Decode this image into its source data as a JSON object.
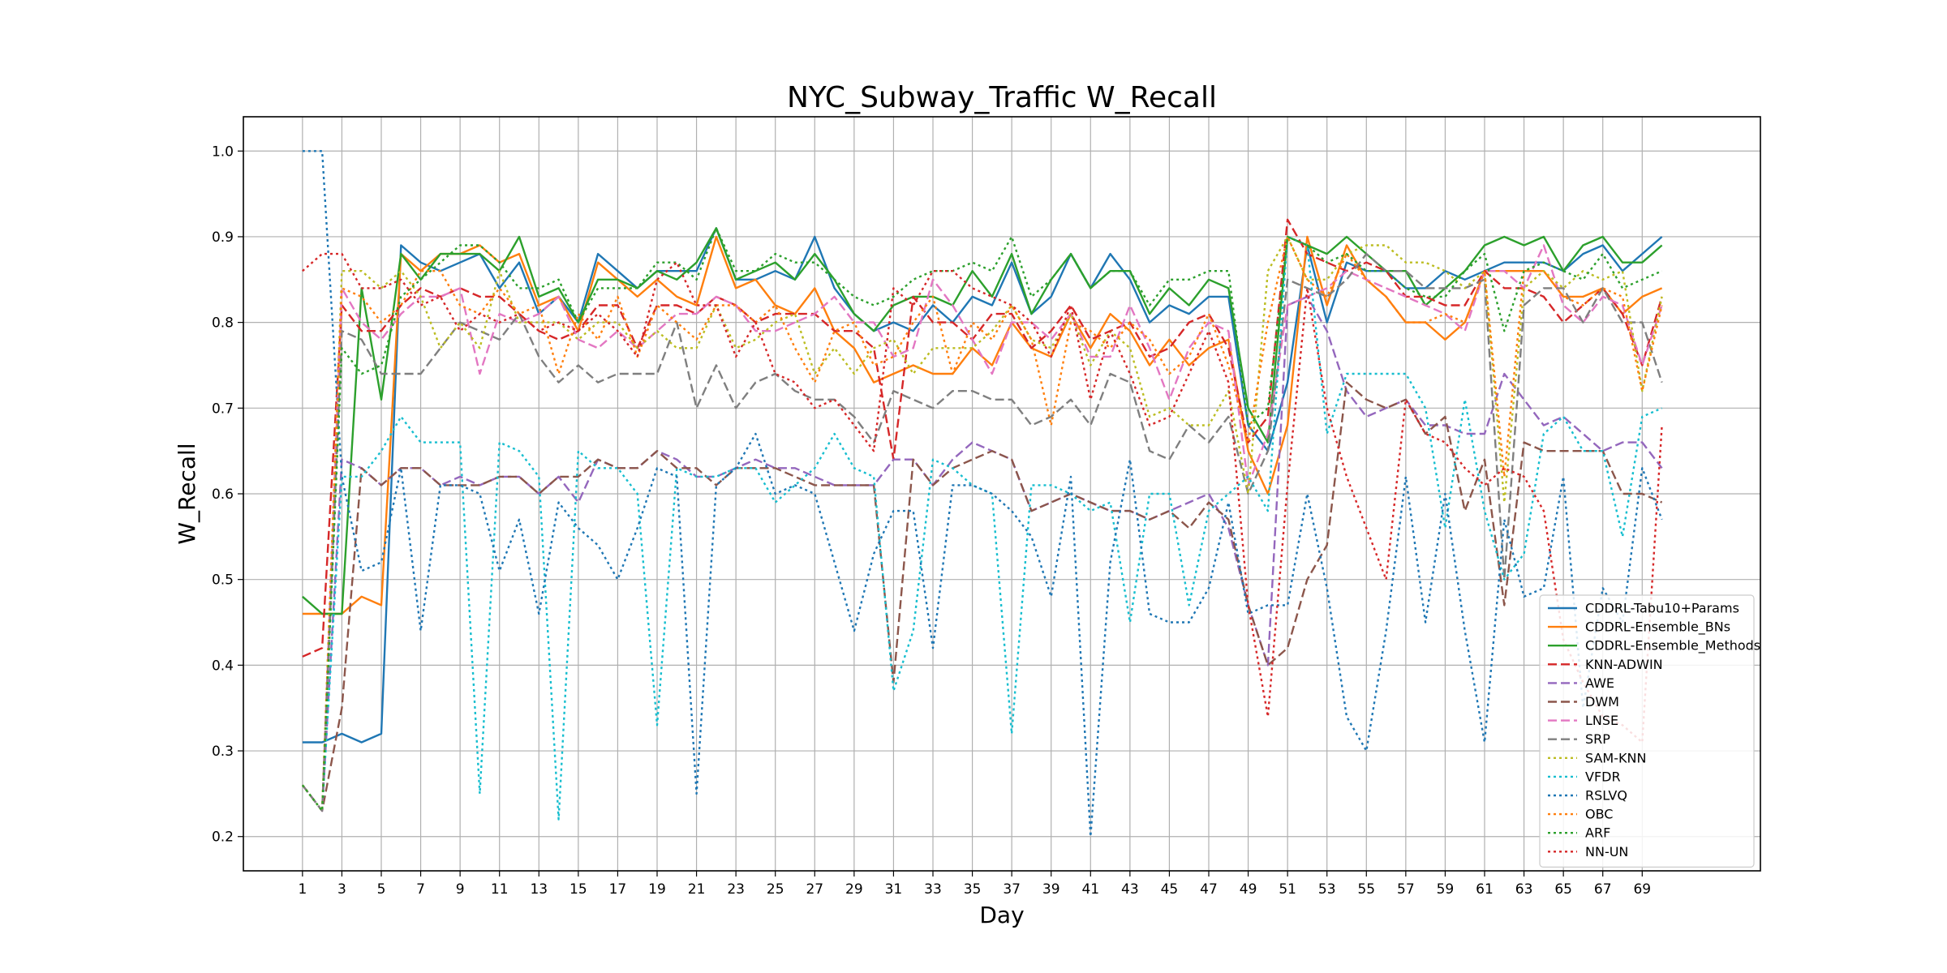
{
  "chart_data": {
    "type": "line",
    "title": "NYC_Subway_Traffic W_Recall",
    "xlabel": "Day",
    "ylabel": "W_Recall",
    "xlim": [
      -2,
      75
    ],
    "ylim": [
      0.16,
      1.04
    ],
    "xticks": [
      1,
      3,
      5,
      7,
      9,
      11,
      13,
      15,
      17,
      19,
      21,
      23,
      25,
      27,
      29,
      31,
      33,
      35,
      37,
      39,
      41,
      43,
      45,
      47,
      49,
      51,
      53,
      55,
      57,
      59,
      61,
      63,
      65,
      67,
      69
    ],
    "yticks": [
      0.2,
      0.3,
      0.4,
      0.5,
      0.6,
      0.7,
      0.8,
      0.9,
      1.0
    ],
    "grid": true,
    "legend_position": "lower-right",
    "x": [
      1,
      2,
      3,
      4,
      5,
      6,
      7,
      8,
      9,
      10,
      11,
      12,
      13,
      14,
      15,
      16,
      17,
      18,
      19,
      20,
      21,
      22,
      23,
      24,
      25,
      26,
      27,
      28,
      29,
      30,
      31,
      32,
      33,
      34,
      35,
      36,
      37,
      38,
      39,
      40,
      41,
      42,
      43,
      44,
      45,
      46,
      47,
      48,
      49,
      50,
      51,
      52,
      53,
      54,
      55,
      56,
      57,
      58,
      59,
      60,
      61,
      62,
      63,
      64,
      65,
      66,
      67,
      68,
      69,
      70
    ],
    "series": [
      {
        "name": "CDDRL-Tabu10+Params",
        "color": "#1f77b4",
        "dash": "solid",
        "values": [
          0.31,
          0.31,
          0.32,
          0.31,
          0.32,
          0.89,
          0.87,
          0.86,
          0.87,
          0.88,
          0.84,
          0.87,
          0.81,
          0.83,
          0.8,
          0.88,
          0.86,
          0.84,
          0.86,
          0.86,
          0.86,
          0.91,
          0.85,
          0.85,
          0.86,
          0.85,
          0.9,
          0.84,
          0.81,
          0.79,
          0.8,
          0.79,
          0.82,
          0.8,
          0.83,
          0.82,
          0.87,
          0.81,
          0.83,
          0.88,
          0.84,
          0.88,
          0.85,
          0.8,
          0.82,
          0.81,
          0.83,
          0.83,
          0.68,
          0.65,
          0.73,
          0.89,
          0.8,
          0.87,
          0.86,
          0.86,
          0.84,
          0.84,
          0.86,
          0.85,
          0.86,
          0.87,
          0.87,
          0.87,
          0.86,
          0.88,
          0.89,
          0.86,
          0.88,
          0.9
        ]
      },
      {
        "name": "CDDRL-Ensemble_BNs",
        "color": "#ff7f0e",
        "dash": "solid",
        "values": [
          0.46,
          0.46,
          0.46,
          0.48,
          0.47,
          0.88,
          0.86,
          0.88,
          0.88,
          0.89,
          0.87,
          0.88,
          0.82,
          0.83,
          0.79,
          0.87,
          0.85,
          0.83,
          0.85,
          0.83,
          0.82,
          0.9,
          0.84,
          0.85,
          0.82,
          0.81,
          0.84,
          0.79,
          0.77,
          0.73,
          0.74,
          0.75,
          0.74,
          0.74,
          0.77,
          0.75,
          0.8,
          0.77,
          0.76,
          0.81,
          0.77,
          0.81,
          0.79,
          0.75,
          0.78,
          0.75,
          0.77,
          0.78,
          0.65,
          0.6,
          0.68,
          0.9,
          0.82,
          0.89,
          0.85,
          0.83,
          0.8,
          0.8,
          0.78,
          0.8,
          0.86,
          0.86,
          0.86,
          0.86,
          0.83,
          0.83,
          0.84,
          0.81,
          0.83,
          0.84
        ]
      },
      {
        "name": "CDDRL-Ensemble_Methods",
        "color": "#2ca02c",
        "dash": "solid",
        "values": [
          0.48,
          0.46,
          0.46,
          0.84,
          0.71,
          0.88,
          0.85,
          0.88,
          0.88,
          0.88,
          0.86,
          0.9,
          0.83,
          0.84,
          0.8,
          0.85,
          0.85,
          0.84,
          0.86,
          0.85,
          0.87,
          0.91,
          0.85,
          0.86,
          0.87,
          0.85,
          0.88,
          0.85,
          0.81,
          0.79,
          0.82,
          0.83,
          0.83,
          0.82,
          0.86,
          0.83,
          0.88,
          0.81,
          0.85,
          0.88,
          0.84,
          0.86,
          0.86,
          0.81,
          0.84,
          0.82,
          0.85,
          0.84,
          0.7,
          0.66,
          0.9,
          0.89,
          0.88,
          0.9,
          0.88,
          0.86,
          0.86,
          0.82,
          0.84,
          0.86,
          0.89,
          0.9,
          0.89,
          0.9,
          0.86,
          0.89,
          0.9,
          0.87,
          0.87,
          0.89
        ]
      },
      {
        "name": "KNN-ADWIN",
        "color": "#d62728",
        "dash": "dashed",
        "values": [
          0.41,
          0.42,
          0.82,
          0.79,
          0.79,
          0.82,
          0.84,
          0.83,
          0.84,
          0.83,
          0.83,
          0.81,
          0.79,
          0.78,
          0.79,
          0.82,
          0.82,
          0.77,
          0.82,
          0.82,
          0.81,
          0.83,
          0.82,
          0.8,
          0.81,
          0.81,
          0.81,
          0.79,
          0.79,
          0.77,
          0.64,
          0.83,
          0.8,
          0.8,
          0.78,
          0.81,
          0.81,
          0.77,
          0.79,
          0.82,
          0.78,
          0.79,
          0.8,
          0.76,
          0.77,
          0.8,
          0.81,
          0.77,
          0.66,
          0.69,
          0.92,
          0.88,
          0.87,
          0.86,
          0.87,
          0.86,
          0.83,
          0.83,
          0.82,
          0.82,
          0.86,
          0.84,
          0.84,
          0.83,
          0.8,
          0.82,
          0.84,
          0.81,
          0.75,
          0.83
        ]
      },
      {
        "name": "AWE",
        "color": "#9467bd",
        "dash": "dashed",
        "values": [
          0.26,
          0.23,
          0.64,
          0.63,
          0.61,
          0.63,
          0.63,
          0.61,
          0.62,
          0.61,
          0.62,
          0.62,
          0.6,
          0.62,
          0.59,
          0.64,
          0.63,
          0.63,
          0.65,
          0.64,
          0.62,
          0.62,
          0.63,
          0.64,
          0.63,
          0.63,
          0.62,
          0.61,
          0.61,
          0.61,
          0.64,
          0.64,
          0.61,
          0.64,
          0.66,
          0.65,
          0.64,
          0.58,
          0.59,
          0.6,
          0.59,
          0.58,
          0.58,
          0.57,
          0.58,
          0.59,
          0.6,
          0.56,
          0.47,
          0.4,
          0.82,
          0.83,
          0.79,
          0.72,
          0.69,
          0.7,
          0.71,
          0.68,
          0.68,
          0.67,
          0.67,
          0.74,
          0.71,
          0.68,
          0.69,
          0.67,
          0.65,
          0.66,
          0.66,
          0.63
        ]
      },
      {
        "name": "DWM",
        "color": "#8c564b",
        "dash": "dashed",
        "values": [
          0.26,
          0.23,
          0.35,
          0.63,
          0.61,
          0.63,
          0.63,
          0.61,
          0.61,
          0.61,
          0.62,
          0.62,
          0.6,
          0.62,
          0.62,
          0.64,
          0.63,
          0.63,
          0.65,
          0.63,
          0.63,
          0.61,
          0.63,
          0.63,
          0.63,
          0.62,
          0.61,
          0.61,
          0.61,
          0.61,
          0.38,
          0.64,
          0.61,
          0.63,
          0.64,
          0.65,
          0.64,
          0.58,
          0.59,
          0.6,
          0.59,
          0.58,
          0.58,
          0.57,
          0.58,
          0.56,
          0.59,
          0.57,
          0.47,
          0.4,
          0.42,
          0.5,
          0.54,
          0.73,
          0.71,
          0.7,
          0.71,
          0.67,
          0.69,
          0.58,
          0.64,
          0.47,
          0.66,
          0.65,
          0.65,
          0.65,
          0.65,
          0.6,
          0.6,
          0.59
        ]
      },
      {
        "name": "LNSE",
        "color": "#e377c2",
        "dash": "dashed",
        "values": [
          0.26,
          0.23,
          0.84,
          0.8,
          0.78,
          0.81,
          0.83,
          0.83,
          0.84,
          0.74,
          0.81,
          0.8,
          0.81,
          0.83,
          0.78,
          0.77,
          0.79,
          0.77,
          0.79,
          0.81,
          0.81,
          0.83,
          0.82,
          0.79,
          0.79,
          0.8,
          0.81,
          0.83,
          0.8,
          0.8,
          0.76,
          0.77,
          0.85,
          0.82,
          0.78,
          0.74,
          0.8,
          0.8,
          0.78,
          0.81,
          0.76,
          0.76,
          0.82,
          0.77,
          0.71,
          0.77,
          0.8,
          0.79,
          0.61,
          0.67,
          0.82,
          0.83,
          0.84,
          0.86,
          0.85,
          0.84,
          0.83,
          0.82,
          0.81,
          0.79,
          0.86,
          0.86,
          0.84,
          0.89,
          0.82,
          0.8,
          0.83,
          0.82,
          0.75,
          0.82
        ]
      },
      {
        "name": "SRP",
        "color": "#7f7f7f",
        "dash": "dashed",
        "values": [
          0.26,
          0.23,
          0.79,
          0.78,
          0.74,
          0.74,
          0.74,
          0.77,
          0.8,
          0.79,
          0.78,
          0.81,
          0.76,
          0.73,
          0.75,
          0.73,
          0.74,
          0.74,
          0.74,
          0.8,
          0.7,
          0.75,
          0.7,
          0.73,
          0.74,
          0.72,
          0.71,
          0.71,
          0.69,
          0.66,
          0.72,
          0.71,
          0.7,
          0.72,
          0.72,
          0.71,
          0.71,
          0.68,
          0.69,
          0.71,
          0.68,
          0.74,
          0.73,
          0.65,
          0.64,
          0.68,
          0.66,
          0.69,
          0.6,
          0.65,
          0.85,
          0.84,
          0.83,
          0.85,
          0.88,
          0.86,
          0.86,
          0.84,
          0.84,
          0.84,
          0.85,
          0.5,
          0.82,
          0.84,
          0.84,
          0.8,
          0.84,
          0.8,
          0.8,
          0.73
        ]
      },
      {
        "name": "SAM-KNN",
        "color": "#bcbd22",
        "dash": "dotted",
        "values": [
          0.26,
          0.23,
          0.86,
          0.86,
          0.84,
          0.86,
          0.83,
          0.77,
          0.8,
          0.77,
          0.86,
          0.8,
          0.8,
          0.8,
          0.78,
          0.8,
          0.8,
          0.77,
          0.79,
          0.77,
          0.77,
          0.82,
          0.77,
          0.78,
          0.8,
          0.81,
          0.74,
          0.77,
          0.74,
          0.77,
          0.78,
          0.74,
          0.77,
          0.77,
          0.77,
          0.79,
          0.82,
          0.78,
          0.77,
          0.81,
          0.75,
          0.79,
          0.77,
          0.69,
          0.7,
          0.68,
          0.68,
          0.72,
          0.6,
          0.86,
          0.9,
          0.85,
          0.85,
          0.88,
          0.89,
          0.89,
          0.87,
          0.87,
          0.86,
          0.84,
          0.86,
          0.59,
          0.84,
          0.86,
          0.84,
          0.86,
          0.85,
          0.86,
          0.72,
          0.83
        ]
      },
      {
        "name": "VFDR",
        "color": "#17becf",
        "dash": "dotted",
        "values": [
          0.26,
          0.23,
          0.62,
          0.62,
          0.65,
          0.69,
          0.66,
          0.66,
          0.66,
          0.25,
          0.66,
          0.65,
          0.62,
          0.22,
          0.65,
          0.63,
          0.63,
          0.6,
          0.33,
          0.63,
          0.62,
          0.62,
          0.63,
          0.63,
          0.59,
          0.61,
          0.63,
          0.67,
          0.63,
          0.62,
          0.37,
          0.44,
          0.64,
          0.63,
          0.61,
          0.6,
          0.32,
          0.61,
          0.61,
          0.6,
          0.58,
          0.59,
          0.45,
          0.6,
          0.6,
          0.47,
          0.58,
          0.6,
          0.62,
          0.58,
          0.9,
          0.89,
          0.67,
          0.74,
          0.74,
          0.74,
          0.74,
          0.7,
          0.56,
          0.71,
          0.58,
          0.5,
          0.53,
          0.67,
          0.69,
          0.65,
          0.65,
          0.55,
          0.69,
          0.7
        ]
      },
      {
        "name": "RSLVQ",
        "color": "#1f77b4",
        "dash": "dotted",
        "values": [
          1.0,
          1.0,
          0.62,
          0.51,
          0.52,
          0.63,
          0.44,
          0.61,
          0.61,
          0.6,
          0.51,
          0.57,
          0.46,
          0.59,
          0.56,
          0.54,
          0.5,
          0.56,
          0.63,
          0.62,
          0.25,
          0.61,
          0.63,
          0.67,
          0.6,
          0.61,
          0.6,
          0.52,
          0.44,
          0.53,
          0.58,
          0.58,
          0.42,
          0.61,
          0.61,
          0.6,
          0.58,
          0.55,
          0.48,
          0.62,
          0.2,
          0.52,
          0.64,
          0.46,
          0.45,
          0.45,
          0.49,
          0.59,
          0.46,
          0.47,
          0.47,
          0.6,
          0.49,
          0.34,
          0.3,
          0.44,
          0.62,
          0.45,
          0.6,
          0.44,
          0.31,
          0.57,
          0.48,
          0.49,
          0.62,
          0.35,
          0.49,
          0.45,
          0.63,
          0.57
        ]
      },
      {
        "name": "OBC",
        "color": "#ff7f0e",
        "dash": "dotted",
        "values": [
          0.26,
          0.23,
          0.84,
          0.83,
          0.8,
          0.82,
          0.86,
          0.86,
          0.82,
          0.81,
          0.84,
          0.81,
          0.82,
          0.74,
          0.81,
          0.78,
          0.83,
          0.76,
          0.82,
          0.8,
          0.78,
          0.82,
          0.82,
          0.8,
          0.82,
          0.77,
          0.73,
          0.79,
          0.8,
          0.75,
          0.76,
          0.8,
          0.83,
          0.74,
          0.8,
          0.78,
          0.82,
          0.78,
          0.68,
          0.8,
          0.79,
          0.77,
          0.8,
          0.78,
          0.74,
          0.76,
          0.81,
          0.75,
          0.66,
          0.8,
          0.9,
          0.85,
          0.83,
          0.88,
          0.85,
          0.83,
          0.8,
          0.8,
          0.81,
          0.8,
          0.86,
          0.62,
          0.86,
          0.86,
          0.83,
          0.82,
          0.84,
          0.83,
          0.72,
          0.82
        ]
      },
      {
        "name": "ARF",
        "color": "#2ca02c",
        "dash": "dotted",
        "values": [
          0.26,
          0.23,
          0.77,
          0.74,
          0.75,
          0.83,
          0.85,
          0.87,
          0.89,
          0.89,
          0.87,
          0.84,
          0.84,
          0.85,
          0.8,
          0.84,
          0.84,
          0.84,
          0.87,
          0.87,
          0.85,
          0.91,
          0.86,
          0.86,
          0.88,
          0.87,
          0.87,
          0.85,
          0.83,
          0.82,
          0.83,
          0.85,
          0.86,
          0.86,
          0.87,
          0.86,
          0.9,
          0.83,
          0.85,
          0.88,
          0.84,
          0.86,
          0.86,
          0.82,
          0.85,
          0.85,
          0.86,
          0.86,
          0.68,
          0.7,
          0.9,
          0.89,
          0.87,
          0.88,
          0.86,
          0.86,
          0.84,
          0.83,
          0.83,
          0.86,
          0.88,
          0.79,
          0.86,
          0.87,
          0.86,
          0.85,
          0.88,
          0.84,
          0.85,
          0.86
        ]
      },
      {
        "name": "NN-UN",
        "color": "#d62728",
        "dash": "dotted",
        "values": [
          0.86,
          0.88,
          0.88,
          0.84,
          0.84,
          0.85,
          0.82,
          0.83,
          0.79,
          0.81,
          0.8,
          0.81,
          0.79,
          0.8,
          0.79,
          0.81,
          0.79,
          0.76,
          0.85,
          0.87,
          0.82,
          0.82,
          0.76,
          0.8,
          0.74,
          0.73,
          0.7,
          0.71,
          0.68,
          0.65,
          0.84,
          0.82,
          0.86,
          0.86,
          0.84,
          0.83,
          0.82,
          0.8,
          0.76,
          0.82,
          0.71,
          0.79,
          0.74,
          0.68,
          0.69,
          0.74,
          0.79,
          0.73,
          0.47,
          0.34,
          0.61,
          0.84,
          0.7,
          0.62,
          0.56,
          0.5,
          0.71,
          0.67,
          0.66,
          0.63,
          0.61,
          0.63,
          0.62,
          0.58,
          0.43,
          0.38,
          0.34,
          0.33,
          0.31,
          0.68
        ]
      }
    ]
  }
}
